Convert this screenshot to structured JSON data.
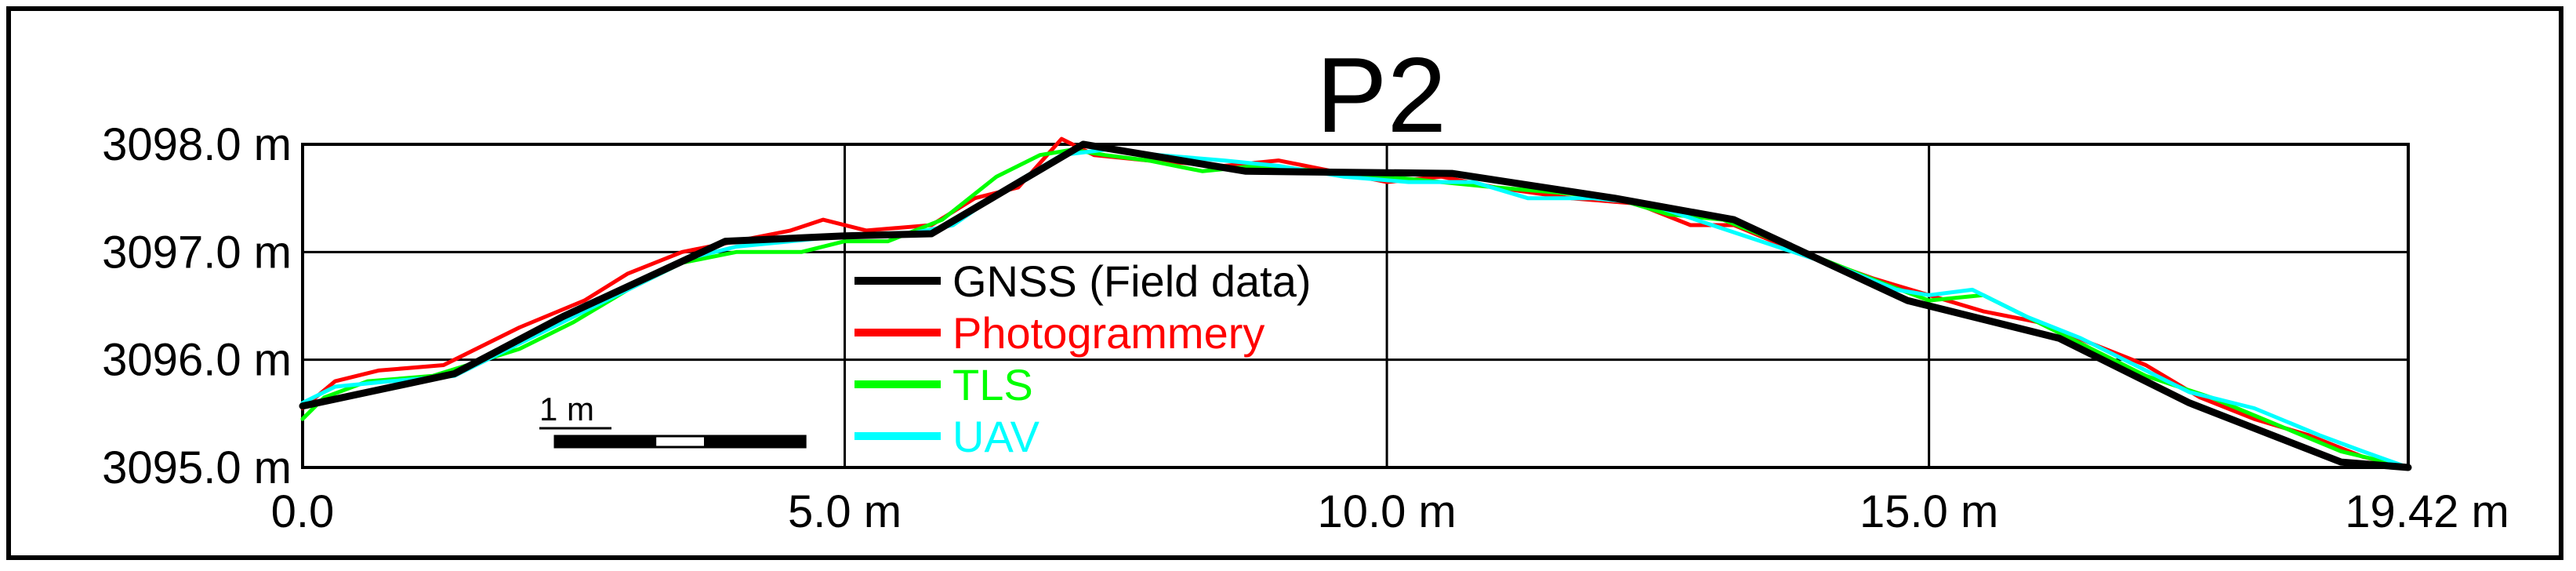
{
  "chart_data": {
    "type": "line",
    "title": "P2",
    "xlabel": "",
    "ylabel": "",
    "xlim": [
      0,
      19.42
    ],
    "ylim": [
      3095.0,
      3098.0
    ],
    "x_ticks": [
      {
        "value": 0,
        "label": "0.0"
      },
      {
        "value": 5,
        "label": "5.0 m"
      },
      {
        "value": 10,
        "label": "10.0 m"
      },
      {
        "value": 15,
        "label": "15.0 m"
      },
      {
        "value": 19.42,
        "label": "19.42 m"
      }
    ],
    "y_ticks": [
      {
        "value": 3098.0,
        "label": "3098.0 m"
      },
      {
        "value": 3097.0,
        "label": "3097.0 m"
      },
      {
        "value": 3096.0,
        "label": "3096.0 m"
      },
      {
        "value": 3095.0,
        "label": "3095.0 m"
      }
    ],
    "grid": true,
    "legend_position": "center-left",
    "scale_bar": {
      "label": "1 m",
      "length": 1
    },
    "series": [
      {
        "name": "GNSS (Field data)",
        "color": "#000000",
        "width": 9,
        "x": [
          0,
          1.4,
          2.4,
          3.9,
          5.0,
          5.8,
          7.2,
          8.7,
          10.6,
          12.1,
          13.2,
          14.8,
          16.2,
          17.4,
          18.8,
          19.42
        ],
        "y": [
          3095.57,
          3095.87,
          3096.4,
          3097.1,
          3097.15,
          3097.17,
          3098.0,
          3097.75,
          3097.73,
          3097.5,
          3097.3,
          3096.55,
          3096.2,
          3095.6,
          3095.05,
          3095.0
        ]
      },
      {
        "name": "Photogrammery",
        "color": "#ff0000",
        "width": 5,
        "x": [
          0,
          0.3,
          0.7,
          1.3,
          2.0,
          2.6,
          3.0,
          3.5,
          4.0,
          4.5,
          4.8,
          5.2,
          5.8,
          6.2,
          6.6,
          7.0,
          7.3,
          7.8,
          8.5,
          9.0,
          9.5,
          10.0,
          10.5,
          11.0,
          11.7,
          12.3,
          12.8,
          13.2,
          13.8,
          14.5,
          15.0,
          15.5,
          16.0,
          16.5,
          17.0,
          17.5,
          18.0,
          18.5,
          19.0,
          19.42
        ],
        "y": [
          3095.55,
          3095.8,
          3095.9,
          3095.95,
          3096.3,
          3096.55,
          3096.8,
          3097.0,
          3097.1,
          3097.2,
          3097.3,
          3097.2,
          3097.25,
          3097.5,
          3097.6,
          3098.05,
          3097.9,
          3097.85,
          3097.8,
          3097.85,
          3097.75,
          3097.65,
          3097.7,
          3097.6,
          3097.5,
          3097.45,
          3097.25,
          3097.25,
          3097.0,
          3096.75,
          3096.6,
          3096.45,
          3096.35,
          3096.15,
          3095.95,
          3095.65,
          3095.45,
          3095.3,
          3095.1,
          3095.0
        ]
      },
      {
        "name": "TLS",
        "color": "#00ff00",
        "width": 5,
        "x": [
          0,
          0.2,
          0.6,
          1.2,
          2.0,
          2.5,
          3.0,
          3.5,
          4.0,
          4.6,
          5.0,
          5.4,
          5.9,
          6.4,
          6.8,
          7.1,
          7.4,
          7.8,
          8.3,
          8.8,
          9.4,
          10.0,
          10.5,
          11.0,
          11.6,
          12.1,
          12.6,
          13.1,
          13.6,
          14.1,
          14.6,
          15.0,
          15.5,
          16.0,
          16.5,
          17.0,
          17.6,
          18.2,
          18.8,
          19.42
        ],
        "y": [
          3095.45,
          3095.65,
          3095.8,
          3095.85,
          3096.1,
          3096.35,
          3096.65,
          3096.9,
          3097.0,
          3097.0,
          3097.1,
          3097.1,
          3097.3,
          3097.7,
          3097.9,
          3097.95,
          3097.9,
          3097.85,
          3097.75,
          3097.8,
          3097.75,
          3097.7,
          3097.65,
          3097.6,
          3097.55,
          3097.5,
          3097.35,
          3097.3,
          3097.1,
          3096.9,
          3096.7,
          3096.55,
          3096.6,
          3096.35,
          3096.1,
          3095.85,
          3095.65,
          3095.4,
          3095.15,
          3095.0
        ]
      },
      {
        "name": "UAV",
        "color": "#00ffff",
        "width": 5,
        "x": [
          0,
          0.3,
          0.8,
          1.4,
          2.0,
          2.6,
          3.1,
          3.6,
          4.0,
          4.5,
          5.0,
          5.5,
          6.0,
          6.5,
          7.0,
          7.4,
          7.9,
          8.5,
          9.0,
          9.6,
          10.2,
          10.8,
          11.3,
          11.9,
          12.4,
          13.0,
          13.6,
          14.2,
          14.7,
          15.0,
          15.4,
          15.9,
          16.4,
          16.9,
          17.4,
          18.0,
          18.6,
          19.0,
          19.42
        ],
        "y": [
          3095.6,
          3095.75,
          3095.8,
          3095.85,
          3096.15,
          3096.45,
          3096.7,
          3096.95,
          3097.05,
          3097.1,
          3097.15,
          3097.15,
          3097.25,
          3097.6,
          3097.9,
          3097.95,
          3097.9,
          3097.85,
          3097.8,
          3097.7,
          3097.65,
          3097.65,
          3097.5,
          3097.5,
          3097.45,
          3097.25,
          3097.05,
          3096.85,
          3096.65,
          3096.6,
          3096.65,
          3096.4,
          3096.2,
          3095.95,
          3095.7,
          3095.55,
          3095.3,
          3095.15,
          3095.0
        ]
      }
    ]
  }
}
